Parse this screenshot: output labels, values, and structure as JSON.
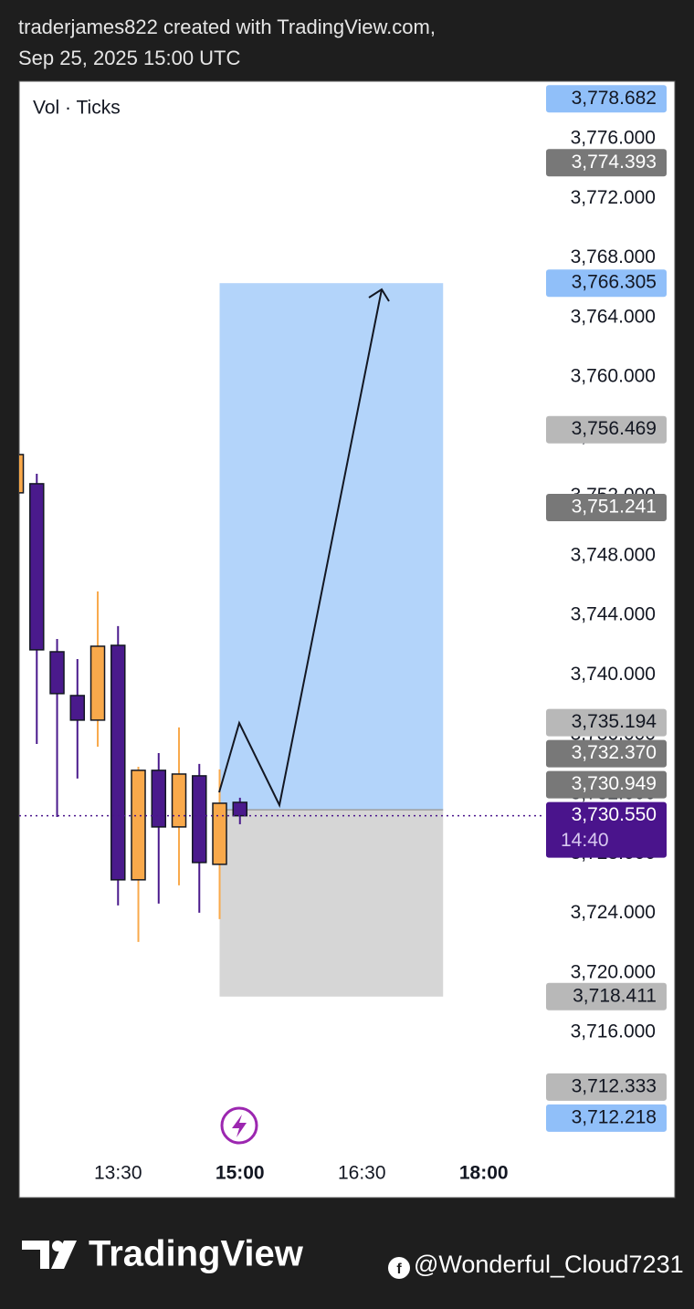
{
  "header": {
    "line1": "traderjames822 created with TradingView.com,",
    "line2": "Sep 25, 2025 15:00 UTC"
  },
  "chart_data": {
    "type": "candlestick",
    "indicator_label": "Vol · Ticks",
    "x": [
      "12:15",
      "12:30",
      "12:45",
      "13:00",
      "13:15",
      "13:30",
      "13:45",
      "14:00",
      "14:15",
      "14:30",
      "14:45",
      "15:00"
    ],
    "open": [
      3752.23,
      3752.84,
      3741.56,
      3738.62,
      3736.97,
      3741.99,
      3726.25,
      3733.6,
      3729.8,
      3733.23,
      3727.29,
      3731.45
    ],
    "high": [
      3754.8,
      3753.51,
      3742.42,
      3741.07,
      3745.61,
      3743.28,
      3733.84,
      3734.76,
      3736.48,
      3734.03,
      3733.66,
      3731.76
    ],
    "low": [
      3752.23,
      3735.37,
      3730.47,
      3733.05,
      3735.19,
      3724.53,
      3722.08,
      3724.65,
      3725.88,
      3724.04,
      3723.61,
      3729.98
    ],
    "close": [
      3754.8,
      3741.69,
      3738.75,
      3736.97,
      3741.93,
      3726.25,
      3733.6,
      3729.8,
      3733.35,
      3727.41,
      3731.39,
      3730.55
    ],
    "up_color": "#f9a94b",
    "down_color": "#4a1a8c",
    "xlim": [
      "12:17",
      "18:44"
    ],
    "xticks": [
      "13:30",
      "15:00",
      "16:30",
      "18:00"
    ],
    "xticks_bold": [
      false,
      true,
      false,
      true
    ],
    "ylim": [
      3708.1,
      3779.86
    ],
    "yticks": [
      {
        "value": 3776,
        "label": "3,776.000"
      },
      {
        "value": 3772,
        "label": "3,772.000"
      },
      {
        "value": 3768,
        "label": "3,768.000"
      },
      {
        "value": 3764,
        "label": "3,764.000"
      },
      {
        "value": 3760,
        "label": "3,760.000"
      },
      {
        "value": 3756,
        "label": "3,756.000"
      },
      {
        "value": 3752,
        "label": "3,752.000"
      },
      {
        "value": 3748,
        "label": "3,748.000"
      },
      {
        "value": 3744,
        "label": "3,744.000"
      },
      {
        "value": 3740,
        "label": "3,740.000"
      },
      {
        "value": 3736,
        "label": "3,736.000"
      },
      {
        "value": 3732,
        "label": "3,732.000"
      },
      {
        "value": 3728,
        "label": "3,728.000"
      },
      {
        "value": 3724,
        "label": "3,724.000"
      },
      {
        "value": 3720,
        "label": "3,720.000"
      },
      {
        "value": 3716,
        "label": "3,716.000"
      },
      {
        "value": 3712,
        "label": "3,712.000"
      }
    ],
    "price_labels": [
      {
        "value": 3778.682,
        "label": "3,778.682",
        "color": "#90bff9",
        "text_color": "#131722"
      },
      {
        "value": 3774.393,
        "label": "3,774.393",
        "color": "#787878",
        "text_color": "#ffffff"
      },
      {
        "value": 3766.305,
        "label": "3,766.305",
        "color": "#90bff9",
        "text_color": "#131722"
      },
      {
        "value": 3756.469,
        "label": "3,756.469",
        "color": "#b8b8b8",
        "text_color": "#131722"
      },
      {
        "value": 3751.241,
        "label": "3,751.241",
        "color": "#787878",
        "text_color": "#ffffff"
      },
      {
        "value": 3735.194,
        "label": "3,735.194",
        "color": "#b8b8b8",
        "text_color": "#131722"
      },
      {
        "value": 3732.37,
        "label": "3,732.370",
        "color": "#787878",
        "text_color": "#ffffff"
      },
      {
        "value": 3730.949,
        "label": "3,730.949",
        "color": "#787878",
        "text_color": "#ffffff"
      },
      {
        "value": 3730.55,
        "label": "3,730.550",
        "color": "#4a148c",
        "text_color": "#ffffff"
      },
      {
        "value": 3718.411,
        "label": "3,718.411",
        "color": "#b8b8b8",
        "text_color": "#131722"
      },
      {
        "value": 3712.333,
        "label": "3,712.333",
        "color": "#b8b8b8",
        "text_color": "#131722"
      },
      {
        "value": 3712.218,
        "label": "3,712.218",
        "color": "#90bff9",
        "text_color": "#131722"
      }
    ],
    "last_price_index": 8,
    "countdown": "14:40",
    "position": {
      "start": "14:45",
      "end": "17:30",
      "entry": 3730.949,
      "target": 3766.305,
      "stop": 3718.411
    }
  },
  "footer": {
    "brand": "TradingView",
    "handle": "@Wonderful_Cloud7231"
  }
}
